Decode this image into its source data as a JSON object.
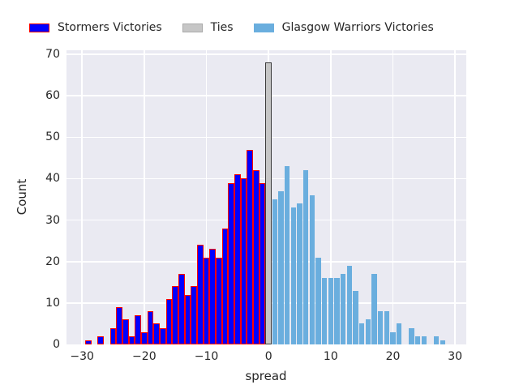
{
  "colors": {
    "figure_bg": "#ffffff",
    "plot_bg": "#eaeaf2",
    "gridline": "#ffffff",
    "text": "#262626",
    "stormers_fill": "#0000ff",
    "stormers_edge": "#ff0000",
    "ties_fill": "#c6c6c6",
    "ties_edge": "#3c3c3c",
    "glasgow_fill": "#6aaede",
    "glasgow_edge": "#ffffff"
  },
  "legend": {
    "items": [
      {
        "label": "Stormers Victories",
        "fill": "#0000ff",
        "edge": "#ff0000"
      },
      {
        "label": "Ties",
        "fill": "#c6c6c6",
        "edge": "#aaaaaa"
      },
      {
        "label": "Glasgow Warriors Victories",
        "fill": "#6aaede",
        "edge": "#6aaede"
      }
    ]
  },
  "chart_data": {
    "type": "bar",
    "title": "",
    "xlabel": "spread",
    "ylabel": "Count",
    "grid": true,
    "legend_position": "top",
    "xlim": [
      -32.5,
      31.8
    ],
    "ylim": [
      0,
      71
    ],
    "bin_width": 1,
    "xticks": [
      {
        "value": -30,
        "label": "−30"
      },
      {
        "value": -20,
        "label": "−20"
      },
      {
        "value": -10,
        "label": "−10"
      },
      {
        "value": 0,
        "label": "0"
      },
      {
        "value": 10,
        "label": "10"
      },
      {
        "value": 20,
        "label": "20"
      },
      {
        "value": 30,
        "label": "30"
      }
    ],
    "yticks": [
      {
        "value": 0,
        "label": "0"
      },
      {
        "value": 10,
        "label": "10"
      },
      {
        "value": 20,
        "label": "20"
      },
      {
        "value": 30,
        "label": "30"
      },
      {
        "value": 40,
        "label": "40"
      },
      {
        "value": 50,
        "label": "50"
      },
      {
        "value": 60,
        "label": "60"
      },
      {
        "value": 70,
        "label": "70"
      }
    ],
    "series": [
      {
        "name": "Stormers Victories",
        "style": "stormers",
        "points": [
          [
            -29,
            1
          ],
          [
            -28,
            0
          ],
          [
            -27,
            2
          ],
          [
            -26,
            0
          ],
          [
            -25,
            4
          ],
          [
            -24,
            9
          ],
          [
            -23,
            6
          ],
          [
            -22,
            2
          ],
          [
            -21,
            7
          ],
          [
            -20,
            3
          ],
          [
            -19,
            8
          ],
          [
            -18,
            5
          ],
          [
            -17,
            4
          ],
          [
            -16,
            11
          ],
          [
            -15,
            14
          ],
          [
            -14,
            17
          ],
          [
            -13,
            12
          ],
          [
            -12,
            14
          ],
          [
            -11,
            24
          ],
          [
            -10,
            21
          ],
          [
            -9,
            23
          ],
          [
            -8,
            21
          ],
          [
            -7,
            28
          ],
          [
            -6,
            39
          ],
          [
            -5,
            41
          ],
          [
            -4,
            40
          ],
          [
            -3,
            47
          ],
          [
            -2,
            42
          ],
          [
            -1,
            39
          ]
        ]
      },
      {
        "name": "Ties",
        "style": "ties",
        "points": [
          [
            0,
            68
          ]
        ]
      },
      {
        "name": "Glasgow Warriors Victories",
        "style": "glasgow",
        "points": [
          [
            1,
            35
          ],
          [
            2,
            37
          ],
          [
            3,
            43
          ],
          [
            4,
            33
          ],
          [
            5,
            34
          ],
          [
            6,
            42
          ],
          [
            7,
            36
          ],
          [
            8,
            21
          ],
          [
            9,
            16
          ],
          [
            10,
            16
          ],
          [
            11,
            16
          ],
          [
            12,
            17
          ],
          [
            13,
            19
          ],
          [
            14,
            13
          ],
          [
            15,
            5
          ],
          [
            16,
            6
          ],
          [
            17,
            17
          ],
          [
            18,
            8
          ],
          [
            19,
            8
          ],
          [
            20,
            3
          ],
          [
            21,
            5
          ],
          [
            22,
            0
          ],
          [
            23,
            4
          ],
          [
            24,
            2
          ],
          [
            25,
            2
          ],
          [
            26,
            0
          ],
          [
            27,
            2
          ],
          [
            28,
            1
          ]
        ]
      }
    ]
  }
}
